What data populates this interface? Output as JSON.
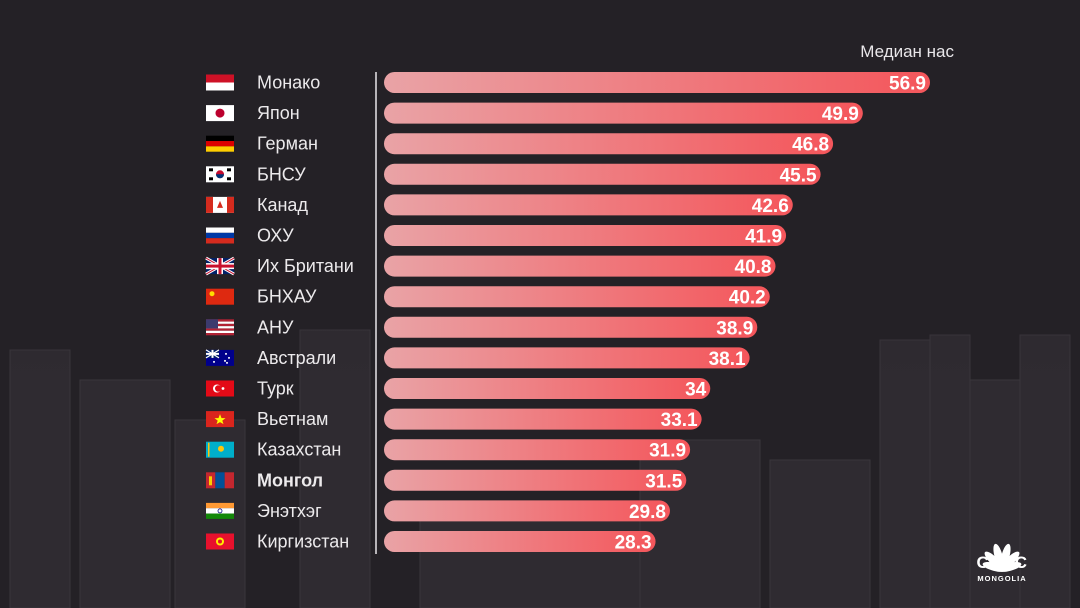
{
  "chart_data": {
    "type": "bar",
    "orientation": "horizontal",
    "subtitle": "Медиан нас",
    "categories": [
      "Монако",
      "Япон",
      "Герман",
      "БНСУ",
      "Канад",
      "ОХУ",
      "Их Британи",
      "БНХАУ",
      "АНУ",
      "Австрали",
      "Турк",
      "Вьетнам",
      "Казахстан",
      "Монгол",
      "Энэтхэг",
      "Киргизстан"
    ],
    "values": [
      56.9,
      49.9,
      46.8,
      45.5,
      42.6,
      41.9,
      40.8,
      40.2,
      38.9,
      38.1,
      34,
      33.1,
      31.9,
      31.5,
      29.8,
      28.3
    ],
    "value_labels": [
      "56.9",
      "49.9",
      "46.8",
      "45.5",
      "42.6",
      "41.9",
      "40.8",
      "40.2",
      "38.9",
      "38.1",
      "34",
      "33.1",
      "31.9",
      "31.5",
      "29.8",
      "28.3"
    ],
    "highlight": "Монгол",
    "flags": [
      "monaco-flag",
      "japan-flag",
      "germany-flag",
      "south-korea-flag",
      "canada-flag",
      "russia-flag",
      "uk-flag",
      "china-flag",
      "usa-flag",
      "australia-flag",
      "turkey-flag",
      "vietnam-flag",
      "kazakhstan-flag",
      "mongolia-flag",
      "india-flag",
      "kyrgyzstan-flag"
    ],
    "bar_gradient": [
      "#e9a3a6",
      "#f4565b"
    ],
    "value_color": "#ffffff",
    "grid": false
  },
  "brand": {
    "logo": "CNBC",
    "sub": "MONGOLIA",
    "icon": "peacock-icon"
  }
}
